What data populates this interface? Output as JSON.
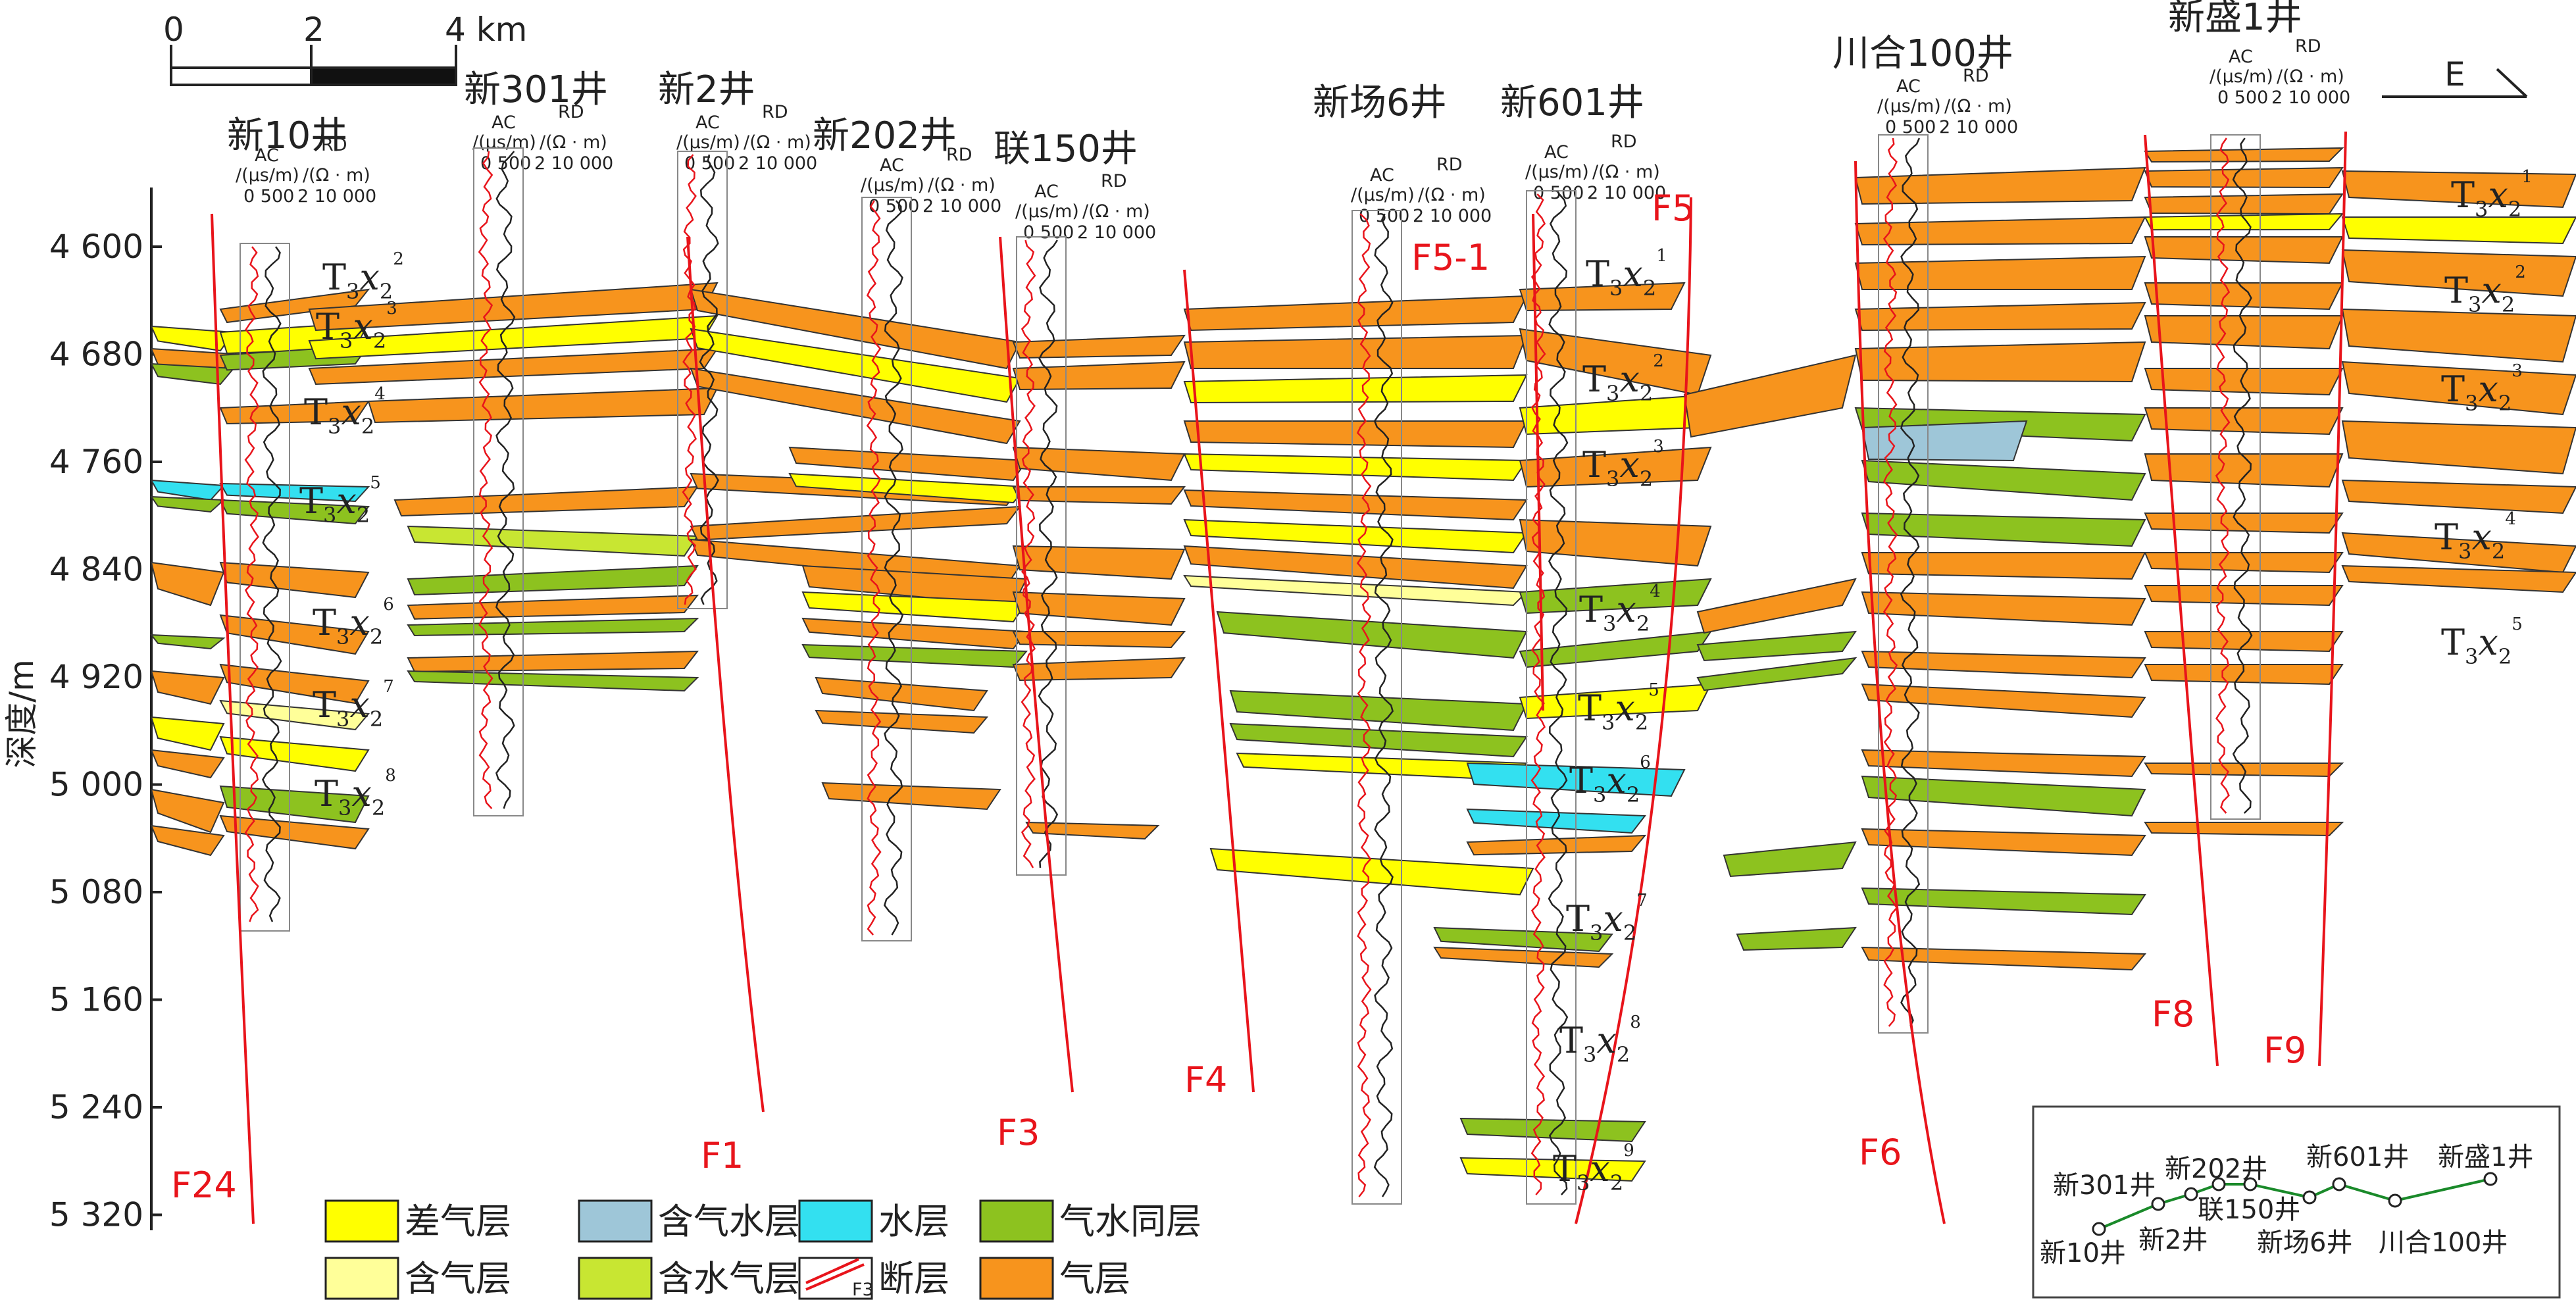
{
  "scale_bar": {
    "ticks": [
      "0",
      "2",
      "4 km"
    ]
  },
  "direction": "E",
  "depth_axis": {
    "label": "深度/m",
    "ticks": [
      "4 600",
      "4 680",
      "4 760",
      "4 840",
      "4 920",
      "5 000",
      "5 080",
      "5 160",
      "5 240",
      "5 320"
    ]
  },
  "log_header": {
    "ac_name": "AC",
    "ac_unit": "/(μs/m)",
    "ac_scale": "0  500",
    "rd_name": "RD",
    "rd_unit": "/(Ω · m)",
    "rd_scale": "2  10 000"
  },
  "wells": [
    {
      "name": "新10井"
    },
    {
      "name": "新301井"
    },
    {
      "name": "新2井"
    },
    {
      "name": "新202井"
    },
    {
      "name": "联150井"
    },
    {
      "name": "新场6井"
    },
    {
      "name": "新601井"
    },
    {
      "name": "川合100井"
    },
    {
      "name": "新盛1井"
    }
  ],
  "faults": [
    "F24",
    "F1",
    "F3",
    "F4",
    "F5-1",
    "F5",
    "F6",
    "F8",
    "F9"
  ],
  "unit_labels": [
    {
      "base": "T",
      "sub1": "3",
      "mid": "x",
      "sub2": "2",
      "sup": "1"
    },
    {
      "base": "T",
      "sub1": "3",
      "mid": "x",
      "sub2": "2",
      "sup": "2"
    },
    {
      "base": "T",
      "sub1": "3",
      "mid": "x",
      "sub2": "2",
      "sup": "3"
    },
    {
      "base": "T",
      "sub1": "3",
      "mid": "x",
      "sub2": "2",
      "sup": "4"
    },
    {
      "base": "T",
      "sub1": "3",
      "mid": "x",
      "sub2": "2",
      "sup": "5"
    },
    {
      "base": "T",
      "sub1": "3",
      "mid": "x",
      "sub2": "2",
      "sup": "6"
    },
    {
      "base": "T",
      "sub1": "3",
      "mid": "x",
      "sub2": "2",
      "sup": "7"
    },
    {
      "base": "T",
      "sub1": "3",
      "mid": "x",
      "sub2": "2",
      "sup": "8"
    },
    {
      "base": "T",
      "sub1": "3",
      "mid": "x",
      "sub2": "2",
      "sup": "9"
    }
  ],
  "layer_colors": {
    "gas": "#f7941d",
    "poor_gas": "#ffff00",
    "gas_bearing": "#ffff99",
    "gas_water": "#8dc21f",
    "water_bearing_gas": "#c8e632",
    "gas_bearing_water": "#9ec6d8",
    "water": "#33e0f0",
    "fault": "#e8141b",
    "log_ac": "#e8141b",
    "log_rd": "#222222"
  },
  "legend": [
    {
      "label": "差气层",
      "color": "#ffff00"
    },
    {
      "label": "含气水层",
      "color": "#9ec6d8"
    },
    {
      "label": "水层",
      "color": "#33e0f0"
    },
    {
      "label": "气水同层",
      "color": "#8dc21f"
    },
    {
      "label": "含气层",
      "color": "#ffff99"
    },
    {
      "label": "含水气层",
      "color": "#c8e632"
    },
    {
      "label": "断层",
      "color": "#e8141b",
      "swatch_text": "F3"
    },
    {
      "label": "气层",
      "color": "#f7941d"
    }
  ],
  "inset_map": {
    "wells": [
      "新10井",
      "新301井",
      "新2井",
      "新202井",
      "联150井",
      "新场6井",
      "新601井",
      "川合100井",
      "新盛1井"
    ]
  }
}
